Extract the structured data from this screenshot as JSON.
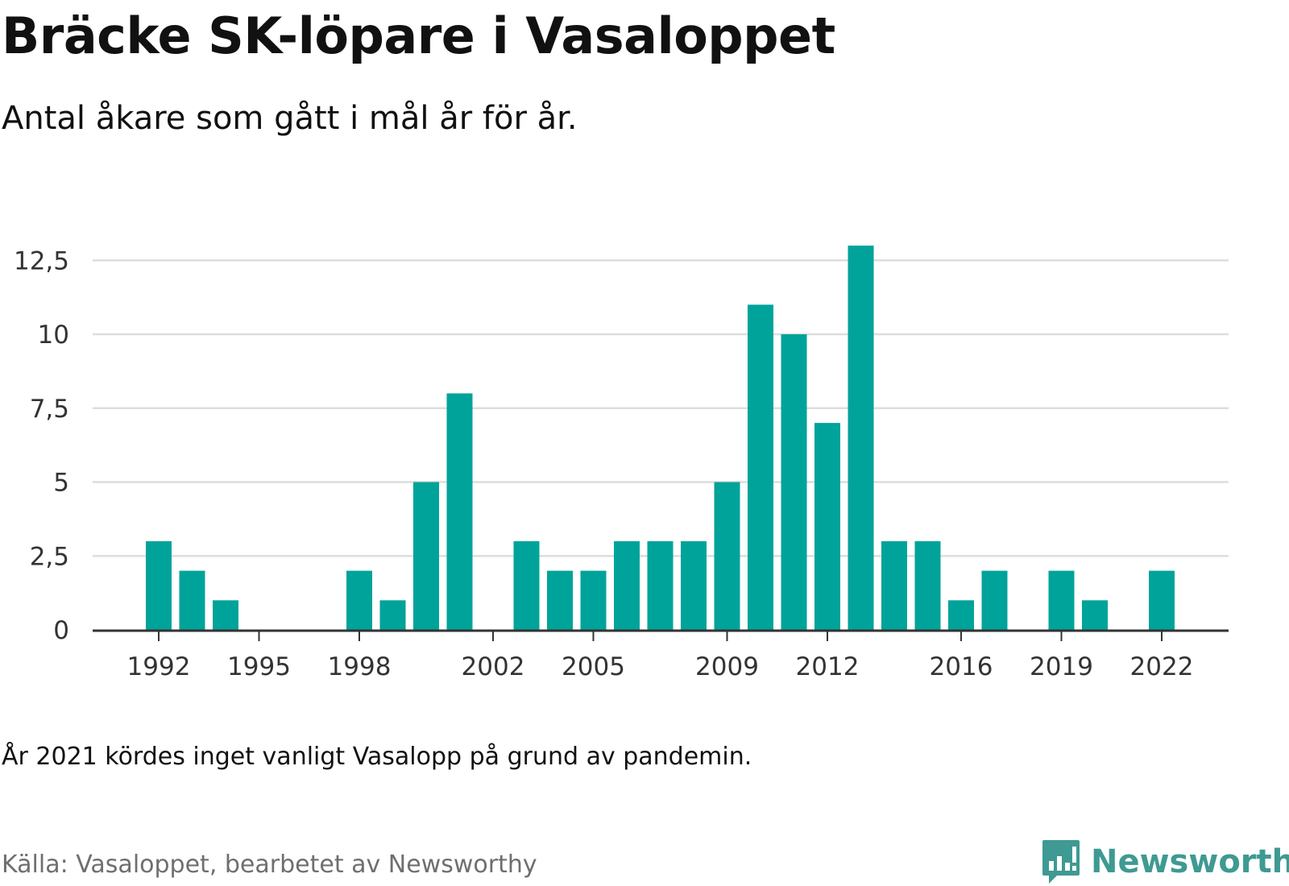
{
  "title": "Bräcke SK-löpare i Vasaloppet",
  "subtitle": "Antal åkare som gått i mål år för år.",
  "note": "År 2021 kördes inget vanligt Vasalopp på grund av pandemin.",
  "source": "Källa: Vasaloppet, bearbetet av Newsworthy",
  "brand": {
    "name": "Newsworthy",
    "icon": "newsworthy-logo-icon",
    "color": "#3e9a92"
  },
  "colors": {
    "bar": "#00a39a",
    "grid": "#dddddd",
    "axis": "#333333"
  },
  "chart_data": {
    "type": "bar",
    "categories": [
      1992,
      1993,
      1994,
      1995,
      1996,
      1997,
      1998,
      1999,
      2000,
      2001,
      2002,
      2003,
      2004,
      2005,
      2006,
      2007,
      2008,
      2009,
      2010,
      2011,
      2012,
      2013,
      2014,
      2015,
      2016,
      2017,
      2018,
      2019,
      2020,
      2021,
      2022
    ],
    "values": [
      3,
      2,
      1,
      0,
      0,
      0,
      2,
      1,
      5,
      8,
      0,
      3,
      2,
      2,
      3,
      3,
      3,
      5,
      11,
      10,
      7,
      13,
      3,
      3,
      1,
      2,
      0,
      2,
      1,
      0,
      2
    ],
    "x_tick_labels": [
      "1992",
      "1995",
      "1998",
      "2002",
      "2005",
      "2009",
      "2012",
      "2016",
      "2019",
      "2022"
    ],
    "y_ticks": [
      0,
      2.5,
      5,
      7.5,
      10,
      12.5
    ],
    "y_tick_labels": [
      "0",
      "2,5",
      "5",
      "7,5",
      "10",
      "12,5"
    ],
    "ylim": [
      0,
      13
    ],
    "grid": true
  }
}
